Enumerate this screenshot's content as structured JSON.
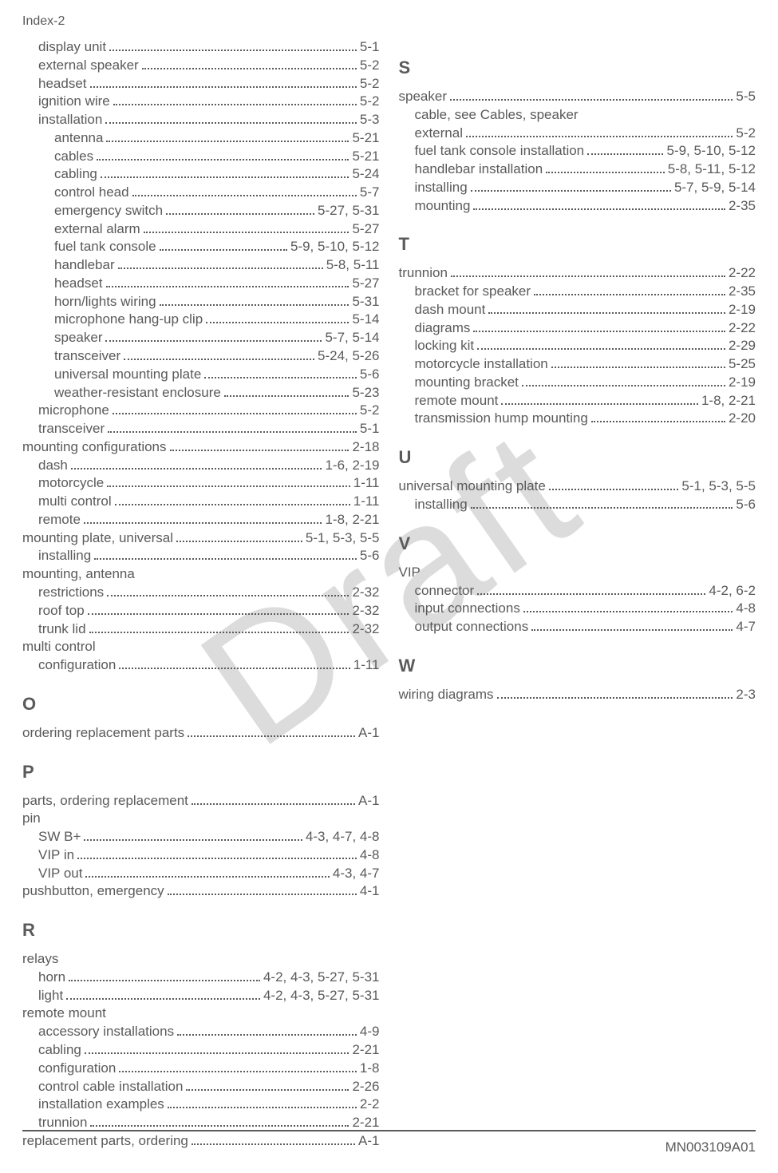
{
  "header": "Index-2",
  "watermark": "Draft",
  "footer": "MN003109A01",
  "columns": [
    {
      "sections": [
        {
          "letter": null,
          "entries": [
            {
              "label": "display unit",
              "page": "5-1",
              "indent": 1
            },
            {
              "label": "external speaker",
              "page": "5-2",
              "indent": 1
            },
            {
              "label": "headset",
              "page": "5-2",
              "indent": 1
            },
            {
              "label": "ignition wire",
              "page": "5-2",
              "indent": 1
            },
            {
              "label": "installation",
              "page": "5-3",
              "indent": 1
            },
            {
              "label": "antenna",
              "page": "5-21",
              "indent": 2
            },
            {
              "label": "cables",
              "page": "5-21",
              "indent": 2
            },
            {
              "label": "cabling",
              "page": "5-24",
              "indent": 2
            },
            {
              "label": "control head",
              "page": "5-7",
              "indent": 2
            },
            {
              "label": "emergency switch",
              "page": "5-27, 5-31",
              "indent": 2
            },
            {
              "label": "external alarm",
              "page": "5-27",
              "indent": 2
            },
            {
              "label": "fuel tank console",
              "page": "5-9, 5-10, 5-12",
              "indent": 2
            },
            {
              "label": "handlebar",
              "page": "5-8, 5-11",
              "indent": 2
            },
            {
              "label": "headset",
              "page": "5-27",
              "indent": 2
            },
            {
              "label": "horn/lights wiring",
              "page": "5-31",
              "indent": 2
            },
            {
              "label": "microphone hang-up clip",
              "page": "5-14",
              "indent": 2
            },
            {
              "label": "speaker",
              "page": "5-7, 5-14",
              "indent": 2
            },
            {
              "label": "transceiver",
              "page": "5-24, 5-26",
              "indent": 2
            },
            {
              "label": "universal mounting plate",
              "page": "5-6",
              "indent": 2
            },
            {
              "label": "weather-resistant enclosure",
              "page": "5-23",
              "indent": 2
            },
            {
              "label": "microphone",
              "page": "5-2",
              "indent": 1
            },
            {
              "label": "transceiver",
              "page": "5-1",
              "indent": 1
            },
            {
              "label": "mounting configurations",
              "page": "2-18",
              "indent": 0
            },
            {
              "label": "dash",
              "page": "1-6, 2-19",
              "indent": 1
            },
            {
              "label": "motorcycle",
              "page": "1-11",
              "indent": 1
            },
            {
              "label": "multi control",
              "page": "1-11",
              "indent": 1
            },
            {
              "label": "remote",
              "page": "1-8, 2-21",
              "indent": 1
            },
            {
              "label": "mounting plate, universal",
              "page": "5-1, 5-3, 5-5",
              "indent": 0
            },
            {
              "label": "installing",
              "page": "5-6",
              "indent": 1
            },
            {
              "label": "mounting, antenna",
              "page": "",
              "indent": 0,
              "noline": true
            },
            {
              "label": "restrictions",
              "page": "2-32",
              "indent": 1
            },
            {
              "label": "roof top",
              "page": "2-32",
              "indent": 1
            },
            {
              "label": "trunk lid",
              "page": "2-32",
              "indent": 1
            },
            {
              "label": "multi control",
              "page": "",
              "indent": 0,
              "noline": true
            },
            {
              "label": "configuration",
              "page": "1-11",
              "indent": 1
            }
          ]
        },
        {
          "letter": "O",
          "entries": [
            {
              "label": "ordering replacement parts",
              "page": "A-1",
              "indent": 0
            }
          ]
        },
        {
          "letter": "P",
          "entries": [
            {
              "label": "parts, ordering replacement",
              "page": "A-1",
              "indent": 0
            },
            {
              "label": "pin",
              "page": "",
              "indent": 0,
              "noline": true
            },
            {
              "label": "SW B+",
              "page": "4-3, 4-7, 4-8",
              "indent": 1
            },
            {
              "label": "VIP in",
              "page": "4-8",
              "indent": 1
            },
            {
              "label": "VIP out",
              "page": "4-3, 4-7",
              "indent": 1
            },
            {
              "label": "pushbutton, emergency",
              "page": "4-1",
              "indent": 0
            }
          ]
        },
        {
          "letter": "R",
          "entries": [
            {
              "label": "relays",
              "page": "",
              "indent": 0,
              "noline": true
            },
            {
              "label": "horn",
              "page": "4-2, 4-3, 5-27, 5-31",
              "indent": 1
            },
            {
              "label": "light",
              "page": "4-2, 4-3, 5-27, 5-31",
              "indent": 1
            },
            {
              "label": "remote mount",
              "page": "",
              "indent": 0,
              "noline": true
            },
            {
              "label": "accessory installations",
              "page": "4-9",
              "indent": 1
            },
            {
              "label": "cabling",
              "page": "2-21",
              "indent": 1
            },
            {
              "label": "configuration",
              "page": "1-8",
              "indent": 1
            },
            {
              "label": "control cable installation",
              "page": "2-26",
              "indent": 1
            },
            {
              "label": "installation examples",
              "page": "2-2",
              "indent": 1
            },
            {
              "label": "trunnion",
              "page": "2-21",
              "indent": 1
            },
            {
              "label": "replacement parts, ordering",
              "page": "A-1",
              "indent": 0
            }
          ]
        }
      ]
    },
    {
      "sections": [
        {
          "letter": "S",
          "entries": [
            {
              "label": "speaker",
              "page": "5-5",
              "indent": 0
            },
            {
              "label": "cable, see Cables, speaker",
              "page": "",
              "indent": 1,
              "noline": true
            },
            {
              "label": "external",
              "page": "5-2",
              "indent": 1
            },
            {
              "label": "fuel tank console installation",
              "page": "5-9, 5-10, 5-12",
              "indent": 1
            },
            {
              "label": "handlebar installation",
              "page": "5-8, 5-11, 5-12",
              "indent": 1
            },
            {
              "label": "installing",
              "page": "5-7, 5-9, 5-14",
              "indent": 1
            },
            {
              "label": "mounting",
              "page": "2-35",
              "indent": 1
            }
          ]
        },
        {
          "letter": "T",
          "entries": [
            {
              "label": "trunnion",
              "page": "2-22",
              "indent": 0
            },
            {
              "label": "bracket for speaker",
              "page": "2-35",
              "indent": 1
            },
            {
              "label": "dash mount",
              "page": "2-19",
              "indent": 1
            },
            {
              "label": "diagrams",
              "page": "2-22",
              "indent": 1
            },
            {
              "label": "locking kit",
              "page": "2-29",
              "indent": 1
            },
            {
              "label": "motorcycle installation",
              "page": "5-25",
              "indent": 1
            },
            {
              "label": "mounting bracket",
              "page": "2-19",
              "indent": 1
            },
            {
              "label": "remote mount",
              "page": "1-8, 2-21",
              "indent": 1
            },
            {
              "label": "transmission hump mounting",
              "page": "2-20",
              "indent": 1
            }
          ]
        },
        {
          "letter": "U",
          "entries": [
            {
              "label": "universal mounting plate",
              "page": "5-1, 5-3, 5-5",
              "indent": 0
            },
            {
              "label": "installing",
              "page": "5-6",
              "indent": 1
            }
          ]
        },
        {
          "letter": "V",
          "entries": [
            {
              "label": "VIP",
              "page": "",
              "indent": 0,
              "noline": true
            },
            {
              "label": "connector",
              "page": "4-2, 6-2",
              "indent": 1
            },
            {
              "label": "input connections",
              "page": "4-8",
              "indent": 1
            },
            {
              "label": "output connections",
              "page": "4-7",
              "indent": 1
            }
          ]
        },
        {
          "letter": "W",
          "entries": [
            {
              "label": "wiring diagrams",
              "page": "2-3",
              "indent": 0
            }
          ]
        }
      ]
    }
  ]
}
